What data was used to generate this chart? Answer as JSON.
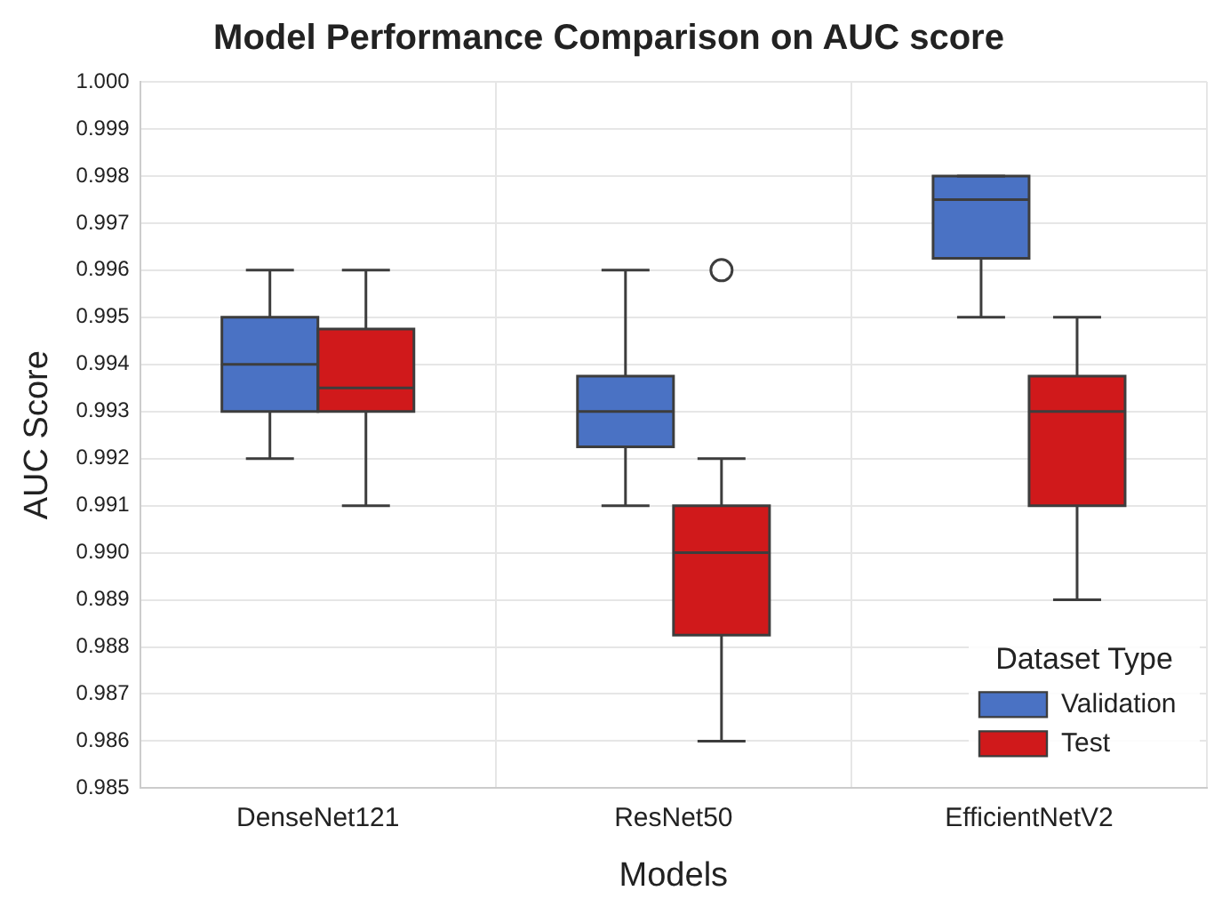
{
  "chart_data": {
    "type": "box",
    "title": "Model Performance Comparison on AUC score",
    "xlabel": "Models",
    "ylabel": "AUC Score",
    "legend_title": "Dataset Type",
    "legend": "bottom right",
    "grid": true,
    "categories": [
      "DenseNet121",
      "ResNet50",
      "EfficientNetV2"
    ],
    "ylim": [
      0.985,
      1.0
    ],
    "yticks": [
      0.985,
      0.986,
      0.987,
      0.988,
      0.989,
      {
        "value": 0.99,
        "label": "0.990"
      },
      0.991,
      0.992,
      0.993,
      0.994,
      0.995,
      0.996,
      0.997,
      0.998,
      0.999,
      {
        "value": 1.0,
        "label": "1.000"
      }
    ],
    "series": [
      {
        "name": "Validation",
        "color": "#4a72c4",
        "boxes": [
          {
            "low": 0.992,
            "q1": 0.993,
            "median": 0.994,
            "q3": 0.995,
            "high": 0.996
          },
          {
            "low": 0.991,
            "q1": 0.99225,
            "median": 0.993,
            "q3": 0.99375,
            "high": 0.996
          },
          {
            "low": 0.995,
            "q1": 0.99625,
            "median": 0.9975,
            "q3": 0.998,
            "high": 0.998
          }
        ]
      },
      {
        "name": "Test",
        "color": "#d0191b",
        "boxes": [
          {
            "low": 0.991,
            "q1": 0.993,
            "median": 0.9935,
            "q3": 0.99475,
            "high": 0.996
          },
          {
            "low": 0.986,
            "q1": 0.98825,
            "median": 0.99,
            "q3": 0.991,
            "high": 0.992,
            "outliers": [
              0.996
            ]
          },
          {
            "low": 0.989,
            "q1": 0.991,
            "median": 0.993,
            "q3": 0.99375,
            "high": 0.995
          }
        ]
      }
    ]
  }
}
